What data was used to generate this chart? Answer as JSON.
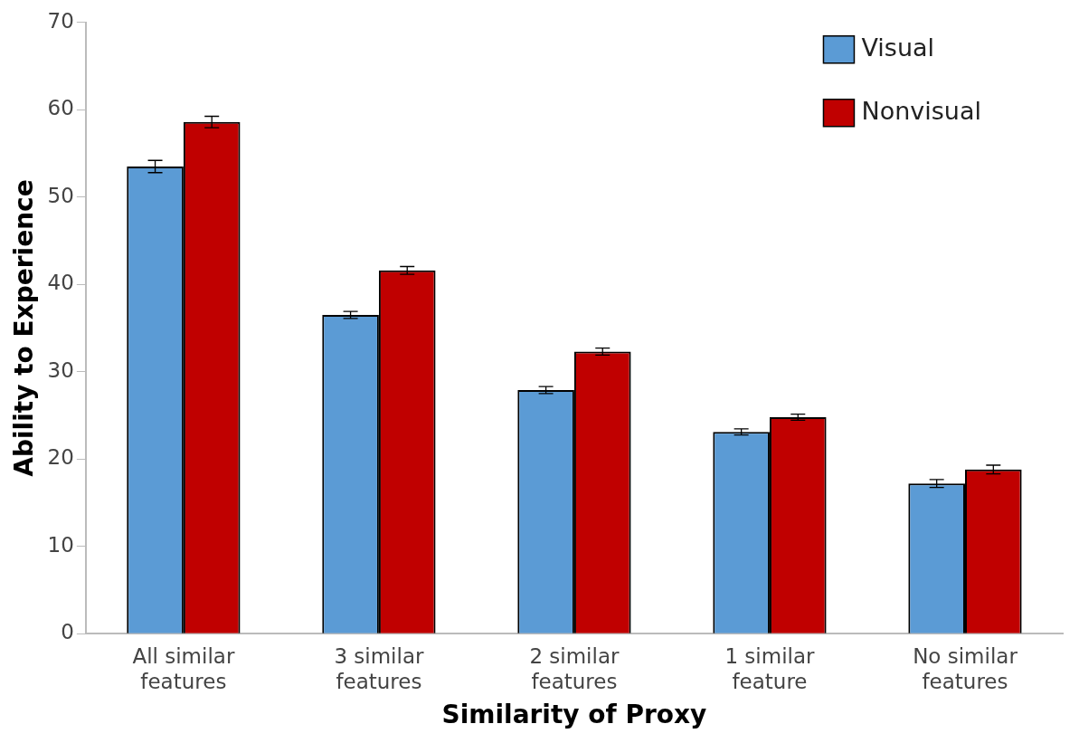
{
  "chart_data": {
    "type": "bar",
    "xlabel": "Similarity of Proxy",
    "ylabel": "Ability to Experience",
    "categories": [
      "All similar features",
      "3 similar features",
      "2 similar features",
      "1 similar feature",
      "No similar features"
    ],
    "series": [
      {
        "name": "Visual",
        "color": "#5b9bd5",
        "values": [
          53.5,
          36.5,
          27.9,
          23.1,
          17.2
        ],
        "errors": [
          0.7,
          0.4,
          0.4,
          0.35,
          0.45
        ]
      },
      {
        "name": "Nonvisual",
        "color": "#c00000",
        "values": [
          58.6,
          41.6,
          32.3,
          24.8,
          18.8
        ],
        "errors": [
          0.65,
          0.45,
          0.4,
          0.35,
          0.5
        ]
      }
    ],
    "ylim": [
      0,
      70
    ],
    "yticks": [
      0,
      10,
      20,
      30,
      40,
      50,
      60,
      70
    ],
    "grid": false,
    "legend": "top right"
  }
}
